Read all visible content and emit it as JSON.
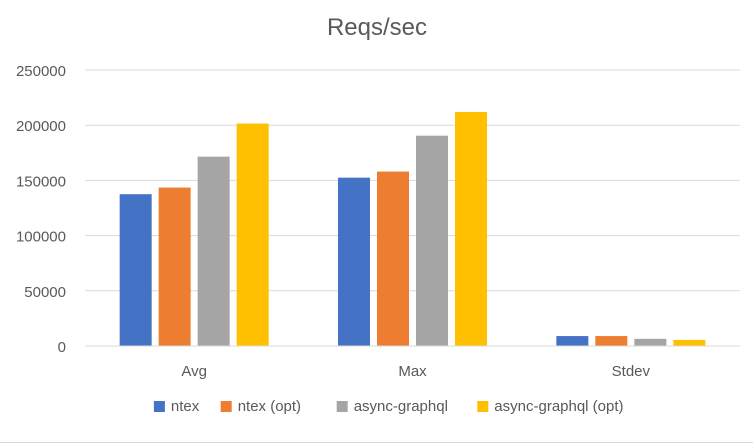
{
  "chart_data": {
    "type": "bar",
    "title": "Reqs/sec",
    "xlabel": "",
    "ylabel": "",
    "categories": [
      "Avg",
      "Max",
      "Stdev"
    ],
    "ylim": [
      0,
      250000
    ],
    "yticks": [
      0,
      50000,
      100000,
      150000,
      200000,
      250000
    ],
    "grid": true,
    "legend_position": "bottom",
    "series": [
      {
        "name": "ntex",
        "color": "#4472C4",
        "values": [
          137500,
          152500,
          9000
        ]
      },
      {
        "name": "ntex (opt)",
        "color": "#ED7D31",
        "values": [
          143500,
          158000,
          9000
        ]
      },
      {
        "name": "async-graphql",
        "color": "#A5A5A5",
        "values": [
          171500,
          190500,
          6500
        ]
      },
      {
        "name": "async-graphql (opt)",
        "color": "#FFC000",
        "values": [
          201500,
          212000,
          5500
        ]
      }
    ]
  }
}
